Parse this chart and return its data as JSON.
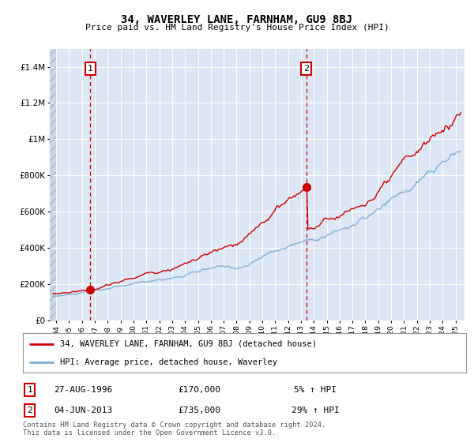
{
  "title": "34, WAVERLEY LANE, FARNHAM, GU9 8BJ",
  "subtitle": "Price paid vs. HM Land Registry's House Price Index (HPI)",
  "plot_bg_color": "#dce6f5",
  "grid_color": "#ffffff",
  "red_line_color": "#cc0000",
  "blue_line_color": "#7aadd4",
  "point1_date_num": 1996.65,
  "point1_value": 170000,
  "point1_label": "1",
  "point2_date_num": 2013.42,
  "point2_value": 735000,
  "point2_label": "2",
  "ylim": [
    0,
    1500000
  ],
  "xlim_start": 1993.5,
  "xlim_end": 2025.7,
  "hatch_xmax": 1994.0,
  "ytick_values": [
    0,
    200000,
    400000,
    600000,
    800000,
    1000000,
    1200000,
    1400000
  ],
  "ytick_labels": [
    "£0",
    "£200K",
    "£400K",
    "£600K",
    "£800K",
    "£1M",
    "£1.2M",
    "£1.4M"
  ],
  "xtick_years": [
    1994,
    1995,
    1996,
    1997,
    1998,
    1999,
    2000,
    2001,
    2002,
    2003,
    2004,
    2005,
    2006,
    2007,
    2008,
    2009,
    2010,
    2011,
    2012,
    2013,
    2014,
    2015,
    2016,
    2017,
    2018,
    2019,
    2020,
    2021,
    2022,
    2023,
    2024,
    2025
  ],
  "legend1_label": "34, WAVERLEY LANE, FARNHAM, GU9 8BJ (detached house)",
  "legend2_label": "HPI: Average price, detached house, Waverley",
  "info1_num": "1",
  "info1_date": "27-AUG-1996",
  "info1_price": "£170,000",
  "info1_hpi": "5% ↑ HPI",
  "info2_num": "2",
  "info2_date": "04-JUN-2013",
  "info2_price": "£735,000",
  "info2_hpi": "29% ↑ HPI",
  "footer": "Contains HM Land Registry data © Crown copyright and database right 2024.\nThis data is licensed under the Open Government Licence v3.0."
}
